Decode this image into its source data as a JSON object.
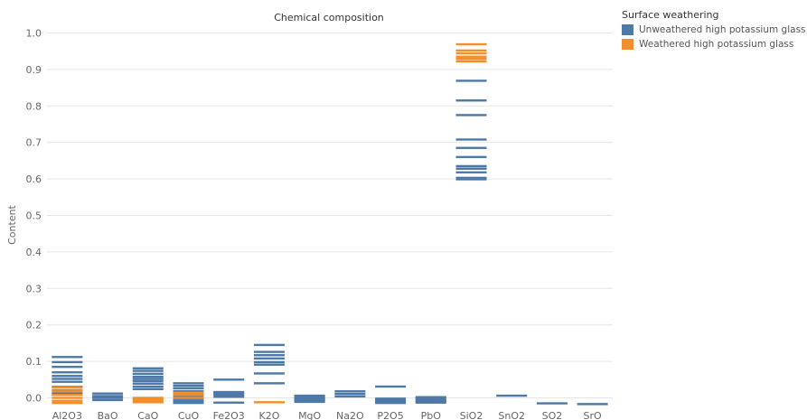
{
  "chart_data": {
    "type": "scatter",
    "mark": "horizontal tick",
    "title": "Chemical composition",
    "xlabel": "",
    "ylabel": "Content",
    "ylim": [
      -0.02,
      1.03
    ],
    "yticks": [
      0.0,
      0.1,
      0.2,
      0.3,
      0.4,
      0.5,
      0.6,
      0.7,
      0.8,
      0.9,
      1.0
    ],
    "ytick_labels": [
      "0.0",
      "0.1",
      "0.2",
      "0.3",
      "0.4",
      "0.5",
      "0.6",
      "0.7",
      "0.8",
      "0.9",
      "1.0"
    ],
    "grid": true,
    "legend_position": "top-right",
    "legend_title": "Surface weathering",
    "categories": [
      "Al2O3",
      "BaO",
      "CaO",
      "CuO",
      "Fe2O3",
      "K2O",
      "MgO",
      "Na2O",
      "P2O5",
      "PbO",
      "SiO2",
      "SnO2",
      "SO2",
      "SrO"
    ],
    "series": [
      {
        "name": "Unweathered high potassium glass",
        "color": "#4e79a7",
        "values": {
          "Al2O3": [
            0.112,
            0.098,
            0.085,
            0.07,
            0.06,
            0.052,
            0.044,
            0.03,
            0.02,
            0.012
          ],
          "BaO": [
            0.012,
            0.005,
            0.0,
            -0.006
          ],
          "CaO": [
            0.081,
            0.074,
            0.066,
            0.058,
            0.052,
            0.046,
            0.039,
            0.031,
            0.024
          ],
          "CuO": [
            0.04,
            0.033,
            0.026,
            0.018,
            0.011,
            0.004,
            -0.003,
            -0.009,
            -0.014
          ],
          "Fe2O3": [
            0.05,
            0.016,
            0.012,
            0.008,
            0.003,
            -0.013
          ],
          "K2O": [
            0.145,
            0.126,
            0.117,
            0.108,
            0.098,
            0.091,
            0.067,
            0.04
          ],
          "MgO": [
            0.006,
            0.003,
            0.0,
            -0.003,
            -0.006,
            -0.008,
            -0.011
          ],
          "Na2O": [
            0.018,
            0.011,
            0.004
          ],
          "P2O5": [
            0.031,
            -0.002,
            -0.006,
            -0.01,
            -0.014
          ],
          "PbO": [
            0.002,
            -0.002,
            -0.006,
            -0.01,
            -0.013
          ],
          "SiO2": [
            0.869,
            0.815,
            0.775,
            0.708,
            0.685,
            0.66,
            0.635,
            0.628,
            0.618,
            0.603,
            0.599
          ],
          "SnO2": [
            0.006
          ],
          "SO2": [
            -0.015
          ],
          "SrO": [
            -0.017
          ]
        }
      },
      {
        "name": "Weathered high potassium glass",
        "color": "#f28e2b",
        "values": {
          "Al2O3": [
            0.028,
            0.018,
            0.008,
            0.0,
            -0.008,
            -0.014
          ],
          "BaO": [],
          "CaO": [
            0.0,
            -0.004,
            -0.008,
            -0.012
          ],
          "CuO": [
            0.014,
            0.008,
            0.0
          ],
          "Fe2O3": [],
          "K2O": [
            -0.012
          ],
          "MgO": [],
          "Na2O": [],
          "P2O5": [],
          "PbO": [],
          "SiO2": [
            0.969,
            0.952,
            0.944,
            0.935,
            0.929,
            0.922
          ],
          "SnO2": [],
          "SO2": [],
          "SrO": []
        }
      }
    ]
  }
}
